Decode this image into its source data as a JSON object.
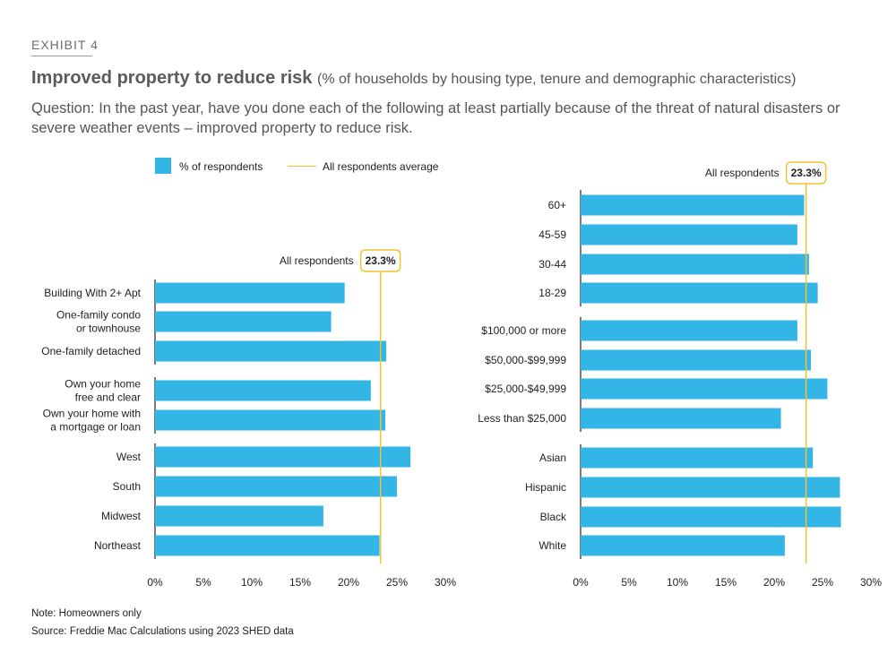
{
  "header": {
    "exhibit": "EXHIBIT 4",
    "title_main": "Improved property to reduce risk",
    "title_sub": "(% of households by housing type, tenure and demographic characteristics)",
    "question": "Question: In the past year, have you done each of the following at least partially because of the threat of natural disasters or severe weather events – improved property to reduce risk."
  },
  "legend": {
    "respondents_label": "% of respondents",
    "average_label": "All respondents average"
  },
  "footer": {
    "note": "Note: Homeowners only",
    "source": "Source: Freddie Mac Calculations using 2023 SHED data"
  },
  "colors": {
    "bar": "#33b5e5",
    "average_line": "#f2c230",
    "axis": "#222222"
  },
  "chart_data": [
    {
      "type": "bar",
      "orientation": "horizontal",
      "name": "left-panel",
      "xlim": [
        0,
        30
      ],
      "xticks": [
        "0%",
        "5%",
        "10%",
        "15%",
        "20%",
        "25%",
        "30%"
      ],
      "reference": {
        "label": "All respondents",
        "value": 23.3,
        "display": "23.3%"
      },
      "groups": [
        {
          "categories": [
            [
              "Building With 2+ Apt"
            ],
            [
              "One-family condo",
              "or townhouse"
            ],
            [
              "One-family detached"
            ]
          ],
          "values": [
            19.6,
            18.2,
            23.9
          ]
        },
        {
          "categories": [
            [
              "Own your home",
              "free and clear"
            ],
            [
              "Own your home with",
              "a mortgage or loan"
            ]
          ],
          "values": [
            22.3,
            23.8
          ]
        },
        {
          "categories": [
            [
              "West"
            ],
            [
              "South"
            ],
            [
              "Midwest"
            ],
            [
              "Northeast"
            ]
          ],
          "values": [
            26.4,
            25.0,
            17.4,
            23.2
          ]
        }
      ]
    },
    {
      "type": "bar",
      "orientation": "horizontal",
      "name": "right-panel",
      "xlim": [
        0,
        30
      ],
      "xticks": [
        "0%",
        "5%",
        "10%",
        "15%",
        "20%",
        "25%",
        "30%"
      ],
      "reference": {
        "label": "All respondents",
        "value": 23.3,
        "display": "23.3%"
      },
      "groups": [
        {
          "categories": [
            [
              "60+"
            ],
            [
              "45-59"
            ],
            [
              "30-44"
            ],
            [
              "18-29"
            ]
          ],
          "values": [
            23.1,
            22.4,
            23.6,
            24.5
          ]
        },
        {
          "categories": [
            [
              "$100,000 or more"
            ],
            [
              "$50,000-$99,999"
            ],
            [
              "$25,000-$49,999"
            ],
            [
              "Less than $25,000"
            ]
          ],
          "values": [
            22.4,
            23.8,
            25.5,
            20.7
          ]
        },
        {
          "categories": [
            [
              "Asian"
            ],
            [
              "Hispanic"
            ],
            [
              "Black"
            ],
            [
              "White"
            ]
          ],
          "values": [
            24.0,
            26.8,
            26.9,
            21.1
          ]
        }
      ]
    }
  ]
}
